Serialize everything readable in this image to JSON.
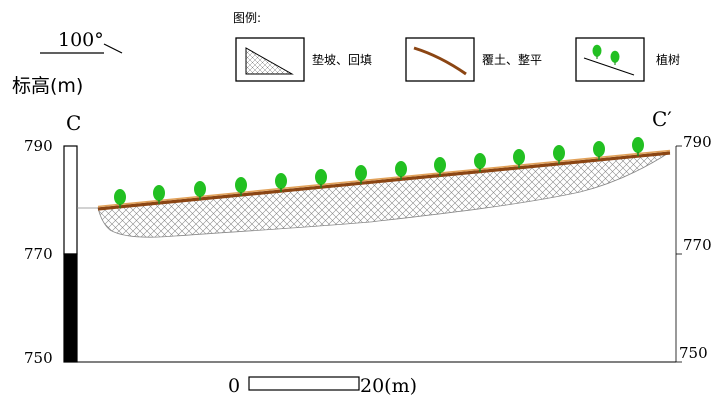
{
  "orientation": {
    "value": "100°"
  },
  "elevation_label": "标高(m)",
  "legend": {
    "title": "图例:",
    "items": [
      {
        "icon": "hatched-triangle-icon",
        "label": "垫坡、回填"
      },
      {
        "icon": "brown-slope-line-icon",
        "label": "覆土、整平"
      },
      {
        "icon": "tree-slope-icon",
        "label": "植树"
      }
    ]
  },
  "section": {
    "left_label": "C",
    "right_label": "C′",
    "left_ticks": [
      "790",
      "770",
      "750"
    ],
    "right_ticks": [
      "790",
      "770",
      "750"
    ],
    "tree_count": 14
  },
  "scale": {
    "start": "0",
    "end": "20(m)"
  },
  "colors": {
    "tree_green": "#22c022",
    "topsoil_brown": "#8b4513",
    "topsoil_orange": "#e2a25a",
    "hatch": "#8a8a8a"
  }
}
